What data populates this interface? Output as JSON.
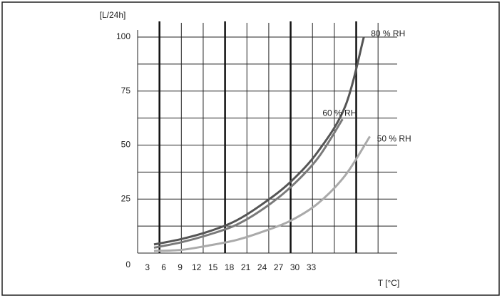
{
  "chart_data": {
    "type": "line",
    "y_label": "[L/24h]",
    "x_label": "T [°C]",
    "xlim": [
      2,
      49.5
    ],
    "ylim": [
      0,
      100
    ],
    "xticks": [
      3,
      6,
      9,
      12,
      15,
      18,
      21,
      24,
      27,
      30,
      33
    ],
    "yticks": [
      0,
      25,
      50,
      75,
      100
    ],
    "xgrid": [
      6,
      10,
      14,
      18,
      22,
      26,
      30,
      34,
      38,
      42,
      46
    ],
    "xgrid_major": [
      6,
      18,
      30,
      42
    ],
    "ygrid": [
      12.5,
      25,
      37.5,
      50,
      62.5,
      75,
      87.5,
      100
    ],
    "grid": true,
    "series": [
      {
        "name": "80 % RH",
        "color": "#555555",
        "x": [
          5,
          10,
          15,
          20,
          25,
          30,
          35,
          40,
          43.4
        ],
        "values": [
          4,
          6.5,
          10,
          15,
          23,
          33,
          47,
          68,
          100
        ]
      },
      {
        "name": "60 % RH",
        "color": "#7a7a7a",
        "x": [
          5,
          10,
          15,
          20,
          25,
          30,
          35,
          39.5
        ],
        "values": [
          2.5,
          5,
          8.5,
          13,
          20.5,
          30.5,
          44,
          62
        ]
      },
      {
        "name": "50 % RH",
        "color": "#aaaaaa",
        "x": [
          5,
          10,
          15,
          20,
          25,
          30,
          35,
          40,
          44.5
        ],
        "values": [
          1,
          1.5,
          3.5,
          6,
          10,
          15,
          23,
          36,
          54
        ]
      }
    ]
  }
}
